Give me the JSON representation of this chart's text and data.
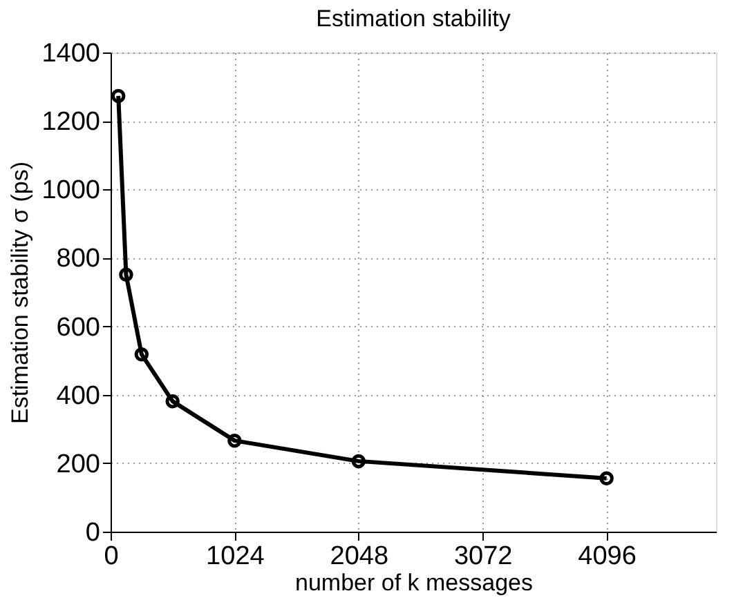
{
  "chart_data": {
    "type": "line",
    "title": "Estimation stability",
    "xlabel": "number of k messages",
    "ylabel": "Estimation stability σ (ps)",
    "x": [
      64,
      128,
      256,
      512,
      1024,
      2048,
      4096
    ],
    "series": [
      {
        "color": "#000000",
        "values": [
          1273,
          751,
          518,
          381,
          266,
          206,
          156
        ]
      }
    ],
    "xlim": [
      0,
      5000
    ],
    "xticks": [
      0,
      1024,
      2048,
      3072,
      4096
    ],
    "ylim": [
      0,
      1400
    ],
    "yticks": [
      0,
      200,
      400,
      600,
      800,
      1000,
      1200,
      1400
    ],
    "grid": true,
    "marker": "circle",
    "line_style": "solid"
  }
}
